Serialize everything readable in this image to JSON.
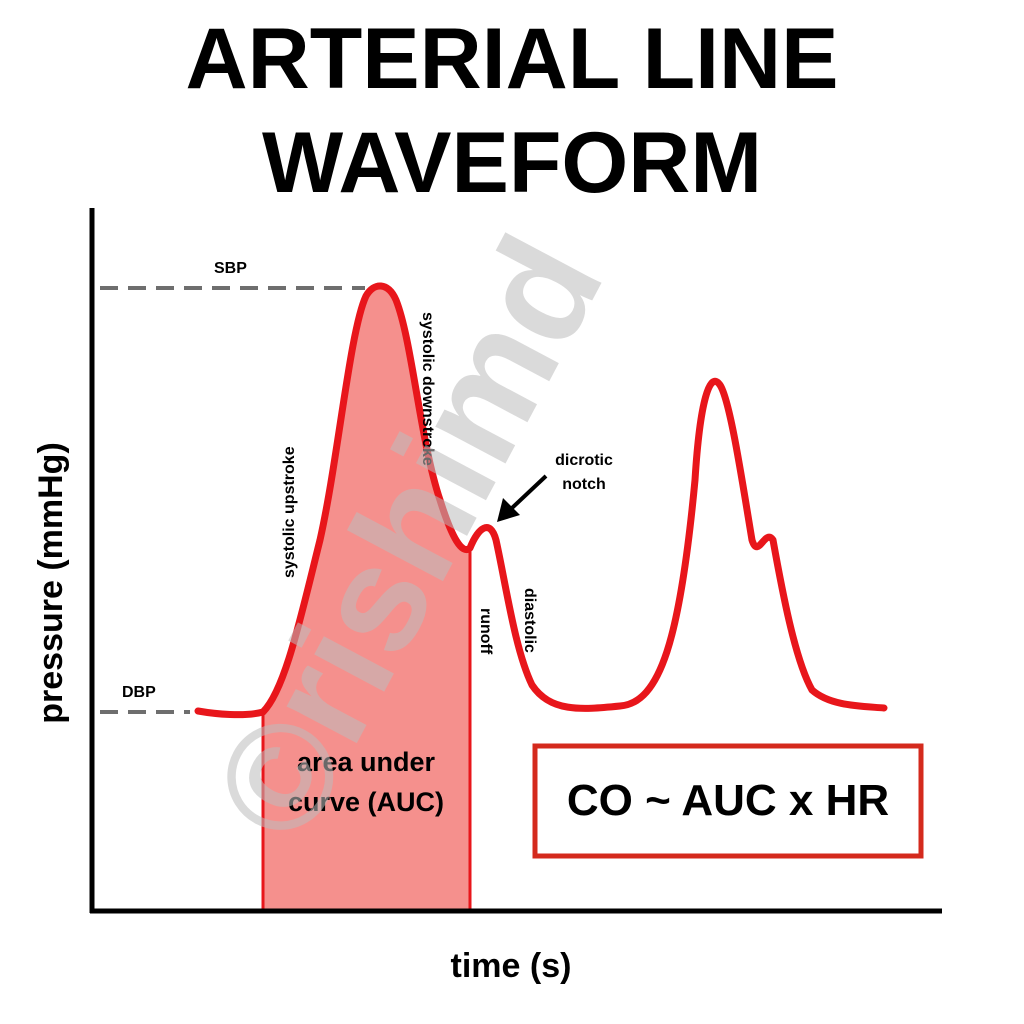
{
  "title": {
    "line1": "ARTERIAL LINE",
    "line2": "WAVEFORM"
  },
  "axes": {
    "x_label": "time (s)",
    "y_label": "pressure (mmHg)"
  },
  "levels": {
    "systolic": "SBP",
    "diastolic": "DBP"
  },
  "annotations": {
    "systolic_upstroke": "systolic upstroke",
    "systolic_downstroke": "systolic downstroke",
    "dicrotic_notch_line1": "dicrotic",
    "dicrotic_notch_line2": "notch",
    "diastolic": "diastolic",
    "runoff": "runoff"
  },
  "auc": {
    "line1": "area under",
    "line2": "curve (AUC)"
  },
  "formula": "CO ~ AUC x HR",
  "watermark": "©rishimd",
  "colors": {
    "waveform": "#e8161b",
    "auc_fill": "#f5908d",
    "formula_box": "#d42a1d",
    "reference_line": "#6e6e6e",
    "axis": "#000000"
  }
}
